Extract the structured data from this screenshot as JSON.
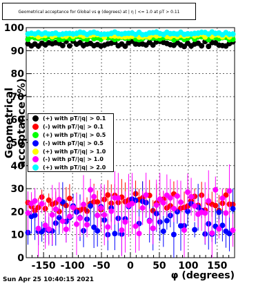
{
  "title": "Geometrical acceptance for Global vs φ (degrees) at | η | <= 1.0 at pT > 0.11",
  "footer_date": "Sun Apr 25 10:40:15 2021",
  "chart_data": {
    "type": "scatter",
    "xlabel": "φ (degrees)",
    "ylabel": "Geometrical acceptance (%)",
    "xlim": [
      -180,
      180
    ],
    "ylim": [
      0,
      100
    ],
    "x_ticks": [
      -150,
      -100,
      -50,
      0,
      50,
      100,
      150
    ],
    "y_ticks": [
      0,
      10,
      20,
      30,
      40,
      50,
      60,
      70,
      80,
      90,
      100
    ],
    "grid": true,
    "legend_position": "left-middle",
    "series": [
      {
        "name": "(+) with pT/|q| > 0.1",
        "color": "#000000",
        "level": 93,
        "spread": 1.2,
        "err": 1
      },
      {
        "name": "(-) with pT/|q| > 0.1",
        "color": "#ff0000",
        "level": 24,
        "spread": 4,
        "err": 6
      },
      {
        "name": "(+) with pT/|q| > 0.5",
        "color": "#00ff00",
        "level": 95.5,
        "spread": 0.8,
        "err": 1
      },
      {
        "name": "(-) with pT/|q| > 0.5",
        "color": "#0000ff",
        "level": 18,
        "spread": 8,
        "err": 8
      },
      {
        "name": "(+) with pT/|q| > 1.0",
        "color": "#ffff00",
        "level": 96.5,
        "spread": 0.7,
        "err": 1
      },
      {
        "name": "(-) with pT/|q| > 1.0",
        "color": "#ff00ff",
        "level": 20,
        "spread": 10,
        "err": 10
      },
      {
        "name": "(+) with pT/|q| > 2.0",
        "color": "#00ffff",
        "level": 97.5,
        "spread": 0.6,
        "err": 1
      }
    ]
  }
}
